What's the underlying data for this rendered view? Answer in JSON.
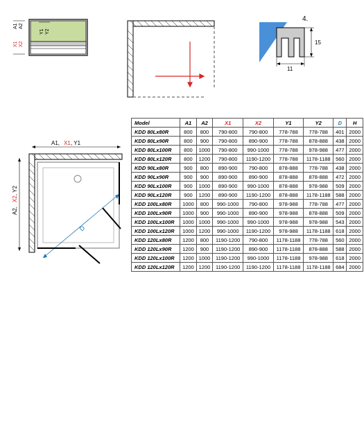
{
  "colors": {
    "black": "#000000",
    "red": "#d62728",
    "blue": "#1f77b4",
    "green_fill": "#c8dca0",
    "blue_fill": "#4a90d9",
    "gray_fill": "#cccccc",
    "gray_line": "#888888"
  },
  "diagram_a": {
    "labels": [
      "A1",
      "A2",
      "X1",
      "X2",
      "Y1",
      "Y2"
    ]
  },
  "diagram_c": {
    "number": "4.",
    "dim_w": "11",
    "dim_h": "15"
  },
  "diagram_d": {
    "top_label": "A1, X1, Y1",
    "left_label": "A2, X2, Y2",
    "angle_label": "D"
  },
  "table": {
    "columns": [
      "Model",
      "A1",
      "A2",
      "X1",
      "X2",
      "Y1",
      "Y2",
      "D",
      "H"
    ],
    "column_colors": [
      "",
      "",
      "",
      "red",
      "red",
      "",
      "",
      "blue",
      ""
    ],
    "rows": [
      [
        "KDD 80Lx80R",
        "800",
        "800",
        "790-800",
        "790-800",
        "778-788",
        "778-788",
        "401",
        "2000"
      ],
      [
        "KDD 80Lx90R",
        "800",
        "900",
        "790-800",
        "890-900",
        "778-788",
        "878-888",
        "438",
        "2000"
      ],
      [
        "KDD 80Lx100R",
        "800",
        "1000",
        "790-800",
        "990-1000",
        "778-788",
        "978-988",
        "477",
        "2000"
      ],
      [
        "KDD 80Lx120R",
        "800",
        "1200",
        "790-800",
        "1190-1200",
        "778-788",
        "1178-1188",
        "560",
        "2000"
      ],
      [
        "KDD 90Lx80R",
        "900",
        "800",
        "890-900",
        "790-800",
        "878-888",
        "778-788",
        "438",
        "2000"
      ],
      [
        "KDD 90Lx90R",
        "900",
        "900",
        "890-900",
        "890-900",
        "878-888",
        "878-888",
        "472",
        "2000"
      ],
      [
        "KDD 90Lx100R",
        "900",
        "1000",
        "890-900",
        "990-1000",
        "878-888",
        "978-988",
        "509",
        "2000"
      ],
      [
        "KDD 90Lx120R",
        "900",
        "1200",
        "890-900",
        "1190-1200",
        "878-888",
        "1178-1188",
        "588",
        "2000"
      ],
      [
        "KDD 100Lx80R",
        "1000",
        "800",
        "990-1000",
        "790-800",
        "978-988",
        "778-788",
        "477",
        "2000"
      ],
      [
        "KDD 100Lx90R",
        "1000",
        "900",
        "990-1000",
        "890-900",
        "978-988",
        "878-888",
        "509",
        "2000"
      ],
      [
        "KDD 100Lx100R",
        "1000",
        "1000",
        "990-1000",
        "990-1000",
        "978-988",
        "978-988",
        "543",
        "2000"
      ],
      [
        "KDD 100Lx120R",
        "1000",
        "1200",
        "990-1000",
        "1190-1200",
        "978-988",
        "1178-1188",
        "618",
        "2000"
      ],
      [
        "KDD 120Lx80R",
        "1200",
        "800",
        "1190-1200",
        "790-800",
        "1178-1188",
        "778-788",
        "560",
        "2000"
      ],
      [
        "KDD 120Lx90R",
        "1200",
        "900",
        "1190-1200",
        "890-900",
        "1178-1188",
        "878-888",
        "588",
        "2000"
      ],
      [
        "KDD 120Lx100R",
        "1200",
        "1000",
        "1190-1200",
        "990-1000",
        "1178-1188",
        "978-988",
        "618",
        "2000"
      ],
      [
        "KDD 120Lx120R",
        "1200",
        "1200",
        "1190-1200",
        "1190-1200",
        "1178-1188",
        "1178-1188",
        "684",
        "2000"
      ]
    ]
  }
}
